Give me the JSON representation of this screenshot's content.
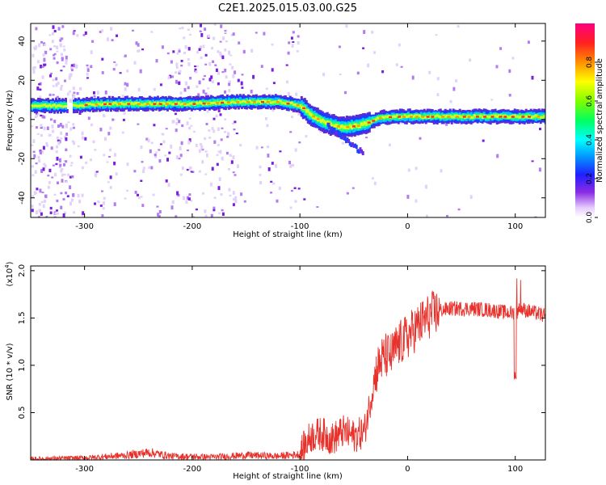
{
  "title": "C2E1.2025.015.03.00.G25",
  "chart_data": [
    {
      "type": "heatmap",
      "xlabel": "Height of straight line (km)",
      "ylabel": "Frequency (Hz)",
      "xlim": [
        -350,
        128
      ],
      "ylim": [
        -50,
        49
      ],
      "xticks": [
        -300,
        -200,
        -100,
        0,
        100
      ],
      "yticks": [
        -40,
        -20,
        0,
        20,
        40
      ],
      "colorbar": {
        "label": "Normalized spectral amplitude",
        "range": [
          0,
          1
        ],
        "ticks": [
          "0.0",
          "0.2",
          "0.4",
          "0.6",
          "0.8"
        ],
        "tick_values": [
          0,
          0.2,
          0.4,
          0.6,
          0.8
        ]
      },
      "ridge": [
        {
          "x": -350,
          "y": 7
        },
        {
          "x": -320,
          "y": 7
        },
        {
          "x": -280,
          "y": 8
        },
        {
          "x": -200,
          "y": 8
        },
        {
          "x": -160,
          "y": 9
        },
        {
          "x": -120,
          "y": 9
        },
        {
          "x": -100,
          "y": 7
        },
        {
          "x": -90,
          "y": 2
        },
        {
          "x": -80,
          "y": -1
        },
        {
          "x": -70,
          "y": -3
        },
        {
          "x": -60,
          "y": -4
        },
        {
          "x": -45,
          "y": -3
        },
        {
          "x": -35,
          "y": -1
        },
        {
          "x": -25,
          "y": 1
        },
        {
          "x": -10,
          "y": 1.5
        },
        {
          "x": 0,
          "y": 1.5
        },
        {
          "x": 50,
          "y": 1.5
        },
        {
          "x": 128,
          "y": 1.5
        }
      ]
    },
    {
      "type": "line",
      "xlabel": "Height of straight line (km)",
      "ylabel": "SNR (10 * v/v)",
      "yscale_label": "(x10",
      "yscale_exp": "4",
      "yscale_suffix": ")",
      "xlim": [
        -350,
        128
      ],
      "ylim": [
        0,
        2.05
      ],
      "xticks": [
        -300,
        -200,
        -100,
        0,
        100
      ],
      "yticks": [
        "0.5",
        "1.0",
        "1.5",
        "2.0"
      ],
      "ytick_values": [
        0.5,
        1.0,
        1.5,
        2.0
      ],
      "color": "#e8312b",
      "series": [
        {
          "x": [
            -350,
            -300,
            -260,
            -240,
            -220,
            -180,
            -150,
            -120,
            -100,
            -90,
            -80,
            -70,
            -60,
            -50,
            -40,
            -35,
            -30,
            -25,
            -20,
            -15,
            -10,
            -5,
            0,
            10,
            20,
            30,
            40,
            60,
            80,
            90,
            100,
            105,
            110,
            120,
            128
          ],
          "values": [
            0.01,
            0.02,
            0.05,
            0.08,
            0.04,
            0.03,
            0.05,
            0.04,
            0.06,
            0.25,
            0.28,
            0.22,
            0.3,
            0.25,
            0.3,
            0.6,
            0.9,
            1.05,
            1.1,
            1.1,
            1.2,
            1.25,
            1.3,
            1.42,
            1.52,
            1.58,
            1.6,
            1.6,
            1.58,
            1.56,
            1.55,
            1.6,
            1.58,
            1.55,
            1.52
          ]
        }
      ]
    }
  ]
}
